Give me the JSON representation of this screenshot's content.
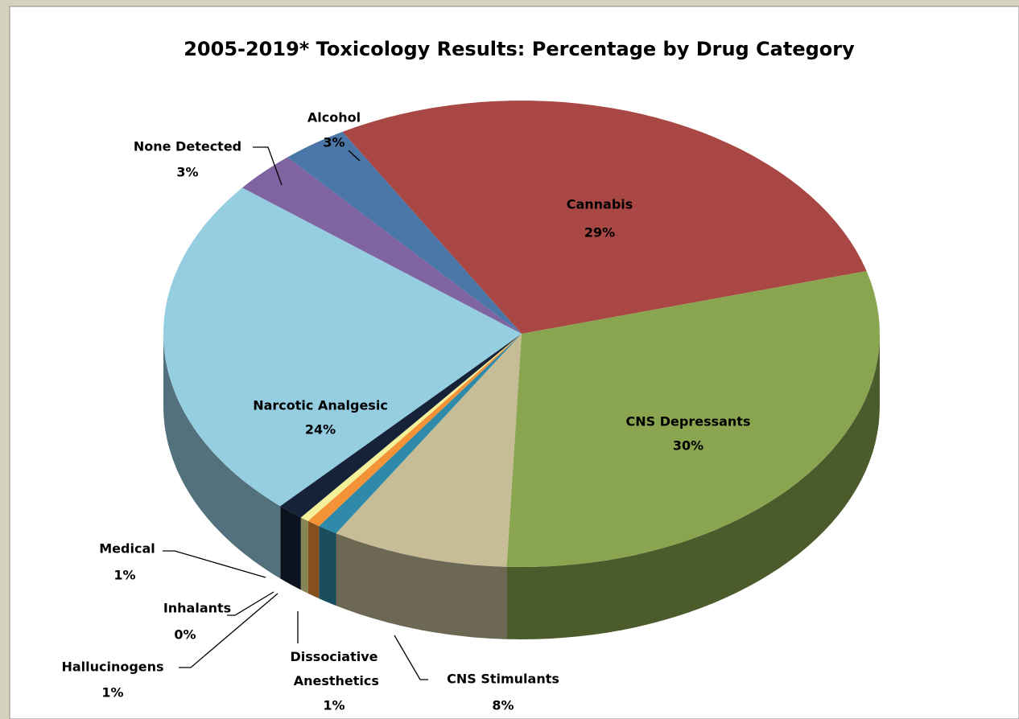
{
  "chart_data": {
    "type": "pie",
    "title": "2005-2019* Toxicology Results: Percentage by Drug Category",
    "categories": [
      "Cannabis",
      "CNS Depressants",
      "CNS Stimulants",
      "Dissociative Anesthetics",
      "Hallucinogens",
      "Inhalants",
      "Medical",
      "Narcotic Analgesic",
      "None Detected",
      "Alcohol"
    ],
    "values": [
      29,
      30,
      8,
      0.9,
      0.6,
      0.4,
      1.2,
      24,
      2.9,
      3
    ],
    "value_labels": [
      "29%",
      "30%",
      "8%",
      "1%",
      "1%",
      "0%",
      "1%",
      "24%",
      "3%",
      "3%"
    ],
    "colors": [
      "#a84744",
      "#8aa54f",
      "#c6bd97",
      "#2e8aa8",
      "#f39237",
      "#f5f09a",
      "#152238",
      "#95cde1",
      "#8064a2",
      "#4a76a8"
    ]
  }
}
